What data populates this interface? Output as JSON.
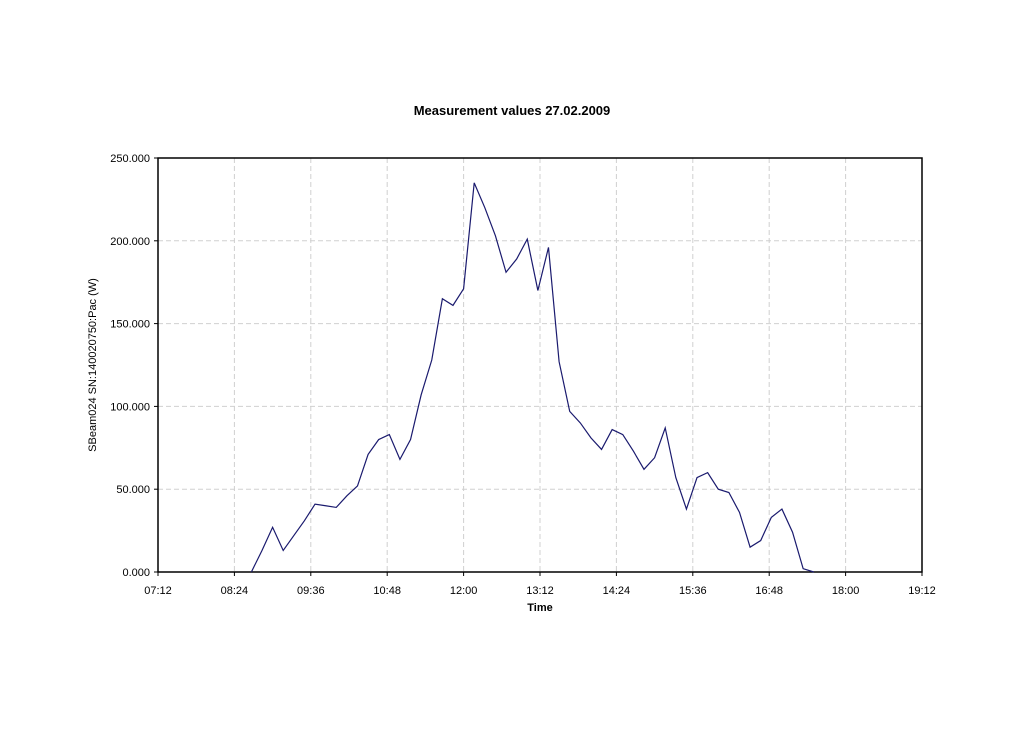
{
  "chart_data": {
    "type": "line",
    "title": "Measurement values 27.02.2009",
    "x_label": "Time",
    "y_label": "SBeam024 SN:140020750:Pac (W)",
    "x": [
      "08:40",
      "08:50",
      "09:00",
      "09:10",
      "09:20",
      "09:30",
      "09:40",
      "09:50",
      "10:00",
      "10:10",
      "10:20",
      "10:30",
      "10:40",
      "10:50",
      "11:00",
      "11:10",
      "11:20",
      "11:30",
      "11:40",
      "11:50",
      "12:00",
      "12:10",
      "12:20",
      "12:30",
      "12:40",
      "12:50",
      "13:00",
      "13:10",
      "13:20",
      "13:30",
      "13:40",
      "13:50",
      "14:00",
      "14:10",
      "14:20",
      "14:30",
      "14:40",
      "14:50",
      "15:00",
      "15:10",
      "15:20",
      "15:30",
      "15:40",
      "15:50",
      "16:00",
      "16:10",
      "16:20",
      "16:30",
      "16:40",
      "16:50",
      "17:00",
      "17:10",
      "17:20",
      "17:30"
    ],
    "series": [
      {
        "name": "SBeam024 SN:140020750:Pac (W)",
        "color": "#1a1a6e",
        "values": [
          0,
          13000,
          27000,
          13000,
          22000,
          31000,
          41000,
          40000,
          39000,
          46000,
          52000,
          71000,
          80000,
          83000,
          68000,
          80000,
          107000,
          128000,
          165000,
          161000,
          171000,
          235000,
          220000,
          203000,
          181000,
          189000,
          201000,
          170000,
          196000,
          127000,
          97000,
          90000,
          81000,
          74000,
          86000,
          83000,
          73000,
          62000,
          69000,
          87000,
          57000,
          38000,
          57000,
          60000,
          50000,
          48000,
          36000,
          15000,
          19000,
          33000,
          38000,
          24000,
          2000,
          0
        ]
      }
    ],
    "xlim": [
      "07:12",
      "19:12"
    ],
    "xticks": [
      "07:12",
      "08:24",
      "09:36",
      "10:48",
      "12:00",
      "13:12",
      "14:24",
      "15:36",
      "16:48",
      "18:00",
      "19:12"
    ],
    "ylim": [
      0,
      250000
    ],
    "yticks": [
      {
        "value": 0,
        "label": "0.000"
      },
      {
        "value": 50000,
        "label": "50.000"
      },
      {
        "value": 100000,
        "label": "100.000"
      },
      {
        "value": 150000,
        "label": "150.000"
      },
      {
        "value": 200000,
        "label": "200.000"
      },
      {
        "value": 250000,
        "label": "250.000"
      }
    ],
    "grid": true
  }
}
